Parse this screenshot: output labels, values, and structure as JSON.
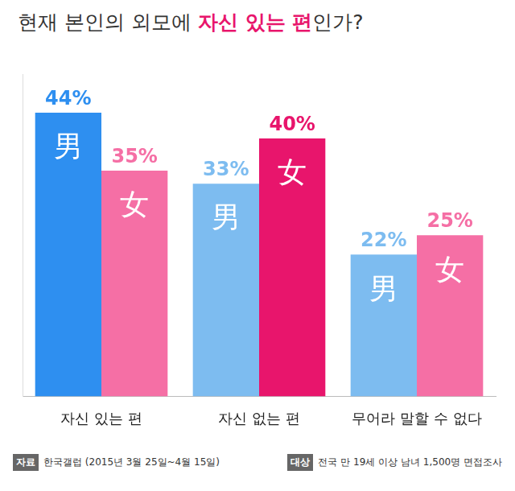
{
  "chart_data": {
    "type": "bar",
    "title": "현재 본인의 외모에 자신 있는 편인가?",
    "categories": [
      "자신 있는 편",
      "자신 없는 편",
      "무어라 말할 수 없다"
    ],
    "series": [
      {
        "name": "男",
        "colors": [
          "#2e8ff0",
          "#7dbcf0",
          "#7dbcf0"
        ],
        "values": [
          44,
          33,
          22
        ],
        "value_labels": [
          "44%",
          "33%",
          "22%"
        ]
      },
      {
        "name": "女",
        "colors": [
          "#f56fa5",
          "#e8156c",
          "#f56fa5"
        ],
        "values": [
          35,
          40,
          25
        ],
        "value_labels": [
          "35%",
          "40%",
          "25%"
        ]
      }
    ],
    "ylim": [
      0,
      50
    ],
    "grid": false,
    "data_labels": true,
    "tick_labels": "x",
    "annotations": [
      {
        "label": "자료",
        "text": "한국갤럽 (2015년 3월 25일~4월 15일)"
      },
      {
        "label": "대상",
        "text": "전국 만 19세 이상 남녀 1,500명 면접조사"
      }
    ]
  }
}
